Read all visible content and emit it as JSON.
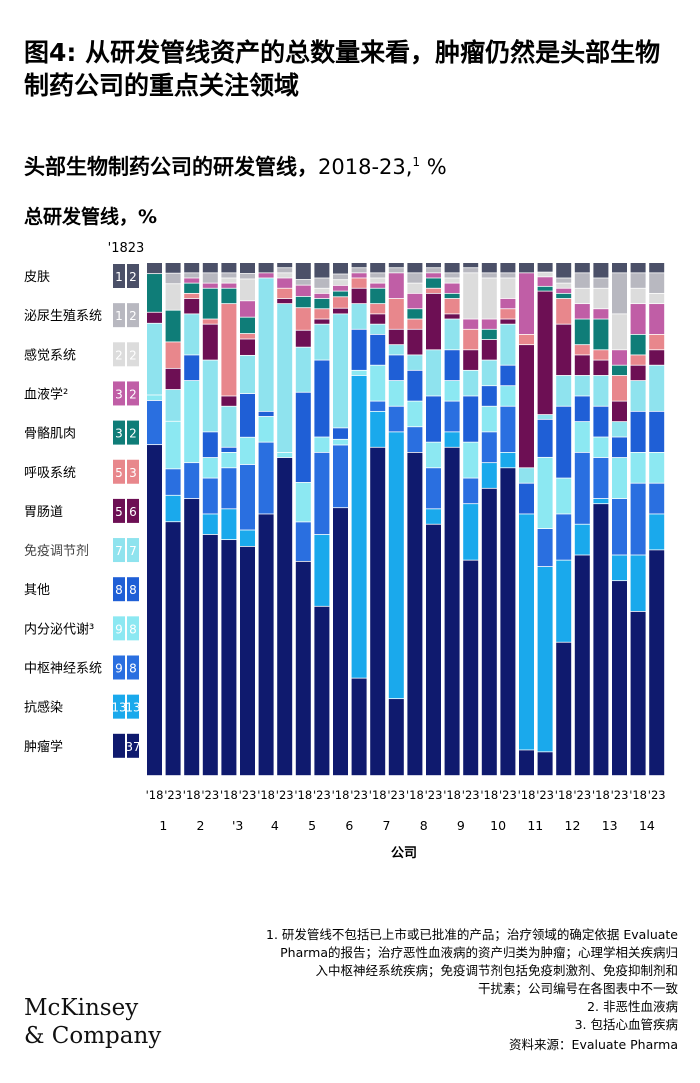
{
  "title": "图4: 从研发管线资产的总数量来看，肿瘤仍然是头部生物制药公司的重点关注领域",
  "subtitle_bold": "头部生物制药公司的研发管线，",
  "subtitle_rest": "2018-23,",
  "subtitle_sup": "1",
  "subtitle_unit": " %",
  "section_label": "总研发管线，%",
  "colors": {
    "皮肤": "#4b5068",
    "泌尿生殖系统": "#b8b8c0",
    "感觉系统": "#dcdcdc",
    "血液学": "#c05ea6",
    "骨骼肌肉": "#0f7d78",
    "呼吸系统": "#e8878c",
    "胃肠道": "#6d0f54",
    "免疫调节剂": "#8fe3ee",
    "其他": "#1f5fd6",
    "内分泌代谢": "#8ce8f2",
    "中枢神经系统": "#2a6fe0",
    "抗感染": "#1aa9ec",
    "肿瘤学": "#0f1a6e"
  },
  "chart_data": {
    "type": "stacked_bar",
    "header": "'1823",
    "x_label": "公司",
    "categories_top": [
      "'18",
      "'23"
    ],
    "companies": [
      "1",
      "2",
      "'3",
      "4",
      "5",
      "6",
      "7",
      "8",
      "9",
      "10",
      "11",
      "12",
      "13",
      "14"
    ],
    "areas": [
      "皮肤",
      "泌尿生殖系统",
      "感觉系统",
      "血液学",
      "骨骼肌肉",
      "呼吸系统",
      "胃肠道",
      "免疫调节剂",
      "其他",
      "内分泌代谢",
      "中枢神经系统",
      "抗感染",
      "肿瘤学"
    ],
    "area_labels": [
      "皮肤",
      "泌尿生殖系统",
      "感觉系统",
      "血液学²",
      "骨骼肌肉",
      "呼吸系统",
      "胃肠道",
      "免疫调节剂",
      "其他",
      "内分泌代谢³",
      "中枢神经系统",
      "抗感染",
      "肿瘤学"
    ],
    "legend_values": [
      [
        "1",
        "2"
      ],
      [
        "1",
        "2"
      ],
      [
        "2",
        "2"
      ],
      [
        "3",
        "2"
      ],
      [
        "3",
        "2"
      ],
      [
        "5",
        "3"
      ],
      [
        "5",
        "6"
      ],
      [
        "7",
        "7"
      ],
      [
        "8",
        "8"
      ],
      [
        "9",
        "8"
      ],
      [
        "9",
        "8"
      ],
      [
        "13",
        "13"
      ],
      [
        "",
        "37"
      ]
    ],
    "bars": [
      {
        "company": "1",
        "year": "'18",
        "values": [
          2,
          0,
          0,
          0,
          7,
          0,
          2,
          13,
          0,
          1,
          8,
          0,
          60
        ]
      },
      {
        "company": "1",
        "year": "'23",
        "values": [
          2,
          2,
          5,
          0,
          6,
          5,
          4,
          6,
          0,
          9,
          5,
          5,
          48
        ]
      },
      {
        "company": "2",
        "year": "'18",
        "values": [
          2,
          1,
          0,
          1,
          2,
          1,
          3,
          8,
          5,
          16,
          7,
          0,
          54
        ]
      },
      {
        "company": "2",
        "year": "'23",
        "values": [
          2,
          2,
          0,
          1,
          6,
          1,
          7,
          14,
          5,
          4,
          7,
          4,
          47
        ]
      },
      {
        "company": "'3",
        "year": "'18",
        "values": [
          2,
          1,
          1,
          1,
          3,
          18,
          2,
          8,
          1,
          3,
          8,
          6,
          46
        ]
      },
      {
        "company": "'3",
        "year": "'23",
        "values": [
          2,
          1,
          4,
          3,
          3,
          1,
          3,
          7,
          8,
          5,
          12,
          3,
          42
        ]
      },
      {
        "company": "4",
        "year": "'18",
        "values": [
          2,
          0,
          0,
          1,
          0,
          0,
          0,
          26,
          1,
          5,
          14,
          0,
          51
        ]
      },
      {
        "company": "4",
        "year": "'23",
        "values": [
          1,
          1,
          1,
          2,
          0,
          2,
          1,
          29,
          0,
          1,
          0,
          0,
          62
        ]
      },
      {
        "company": "5",
        "year": "'18",
        "values": [
          3,
          1,
          0,
          2,
          2,
          4,
          3,
          8,
          16,
          7,
          7,
          0,
          38
        ]
      },
      {
        "company": "5",
        "year": "'23",
        "values": [
          3,
          2,
          1,
          1,
          2,
          2,
          1,
          7,
          15,
          3,
          16,
          14,
          33
        ]
      },
      {
        "company": "6",
        "year": "'18",
        "values": [
          2,
          1,
          1,
          1,
          1,
          2,
          1,
          20,
          2,
          1,
          11,
          0,
          47
        ]
      },
      {
        "company": "6",
        "year": "'23",
        "values": [
          1,
          1,
          0,
          1,
          0,
          2,
          3,
          5,
          8,
          1,
          0,
          59,
          19
        ]
      },
      {
        "company": "7",
        "year": "'18",
        "values": [
          2,
          1,
          1,
          1,
          3,
          2,
          2,
          2,
          6,
          7,
          2,
          7,
          64
        ]
      },
      {
        "company": "7",
        "year": "'23",
        "values": [
          1,
          1,
          0,
          5,
          0,
          6,
          3,
          2,
          5,
          5,
          5,
          52,
          15
        ]
      },
      {
        "company": "8",
        "year": "'18",
        "values": [
          2,
          2,
          2,
          3,
          2,
          2,
          5,
          3,
          6,
          5,
          5,
          0,
          63
        ]
      },
      {
        "company": "8",
        "year": "'23",
        "values": [
          1,
          1,
          0,
          1,
          2,
          1,
          11,
          9,
          9,
          5,
          8,
          3,
          49
        ]
      },
      {
        "company": "9",
        "year": "'18",
        "values": [
          2,
          1,
          1,
          2,
          1,
          3,
          1,
          6,
          6,
          4,
          6,
          3,
          64
        ]
      },
      {
        "company": "9",
        "year": "'23",
        "values": [
          1,
          1,
          9,
          2,
          0,
          4,
          4,
          5,
          9,
          7,
          5,
          11,
          42
        ]
      },
      {
        "company": "10",
        "year": "'18",
        "values": [
          2,
          1,
          8,
          2,
          2,
          0,
          4,
          5,
          4,
          5,
          6,
          5,
          56
        ]
      },
      {
        "company": "10",
        "year": "'23",
        "values": [
          2,
          1,
          4,
          2,
          0,
          2,
          1,
          8,
          4,
          4,
          9,
          3,
          60
        ]
      },
      {
        "company": "11",
        "year": "'18",
        "values": [
          2,
          0,
          0,
          12,
          0,
          2,
          24,
          3,
          6,
          0,
          0,
          46,
          5
        ]
      },
      {
        "company": "11",
        "year": "'23",
        "values": [
          2,
          0,
          1,
          2,
          1,
          0,
          26,
          1,
          8,
          15,
          8,
          39,
          5
        ]
      },
      {
        "company": "12",
        "year": "'18",
        "values": [
          3,
          1,
          1,
          1,
          1,
          5,
          10,
          6,
          14,
          7,
          9,
          16,
          26
        ]
      },
      {
        "company": "12",
        "year": "'23",
        "values": [
          2,
          3,
          3,
          3,
          5,
          2,
          4,
          4,
          5,
          6,
          14,
          6,
          43
        ]
      },
      {
        "company": "13",
        "year": "'18",
        "values": [
          3,
          2,
          4,
          2,
          6,
          2,
          3,
          6,
          6,
          4,
          8,
          1,
          53
        ]
      },
      {
        "company": "13",
        "year": "'23",
        "values": [
          2,
          8,
          7,
          3,
          2,
          5,
          4,
          3,
          4,
          8,
          11,
          5,
          38
        ]
      },
      {
        "company": "14",
        "year": "'18",
        "values": [
          2,
          3,
          3,
          6,
          4,
          2,
          3,
          6,
          8,
          6,
          14,
          11,
          32
        ]
      },
      {
        "company": "14",
        "year": "'23",
        "values": [
          2,
          4,
          2,
          6,
          0,
          3,
          3,
          9,
          8,
          6,
          6,
          7,
          44
        ]
      }
    ]
  },
  "footnotes": [
    "1.  研发管线不包括已上市或已批准的产品；治疗领域的确定依据 Evaluate",
    "Pharma的报告；治疗恶性血液病的资产归类为肿瘤；心理学相关疾病归",
    "入中枢神经系统疾病；免疫调节剂包括免疫刺激剂、免疫抑制剂和",
    "干扰素；公司编号在各图表中不一致",
    "2.  非恶性血液病",
    "3.  包括心血管疾病"
  ],
  "logo_line1": "McKinsey",
  "logo_line2": "& Company",
  "source": "资料来源：Evaluate Pharma"
}
